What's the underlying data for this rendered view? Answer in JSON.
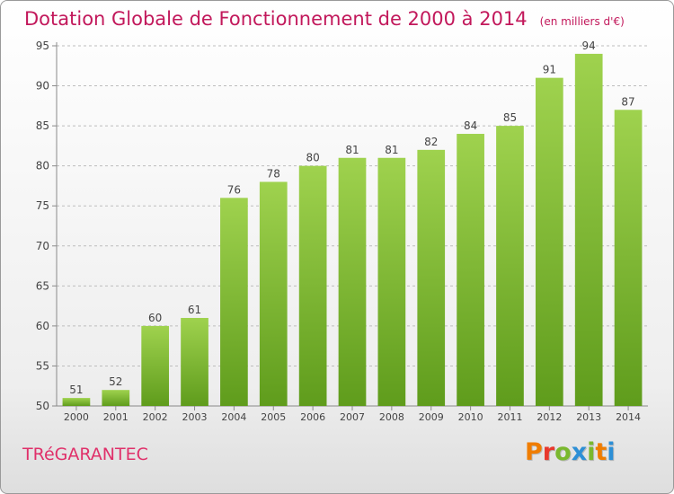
{
  "chart_data": {
    "type": "bar",
    "title": "Dotation Globale de Fonctionnement de 2000 à 2014",
    "subtitle": "(en milliers d'€)",
    "xlabel": "",
    "ylabel": "",
    "categories": [
      "2000",
      "2001",
      "2002",
      "2003",
      "2004",
      "2005",
      "2006",
      "2007",
      "2008",
      "2009",
      "2010",
      "2011",
      "2012",
      "2013",
      "2014"
    ],
    "values": [
      51,
      52,
      60,
      61,
      76,
      78,
      80,
      81,
      81,
      82,
      84,
      85,
      91,
      94,
      87
    ],
    "ylim": [
      50,
      95
    ],
    "yticks": [
      50,
      55,
      60,
      65,
      70,
      75,
      80,
      85,
      90,
      95
    ],
    "grid": true,
    "bar_color": "#7ab82e",
    "title_color": "#c2185b"
  },
  "footer": {
    "commune": "TRéGARANTEC",
    "brand": "Proxiti",
    "brand_colors": [
      "#f07d00",
      "#e8382d",
      "#7ab82e",
      "#2d8fd6",
      "#7ab82e",
      "#f07d00",
      "#2d8fd6"
    ]
  }
}
